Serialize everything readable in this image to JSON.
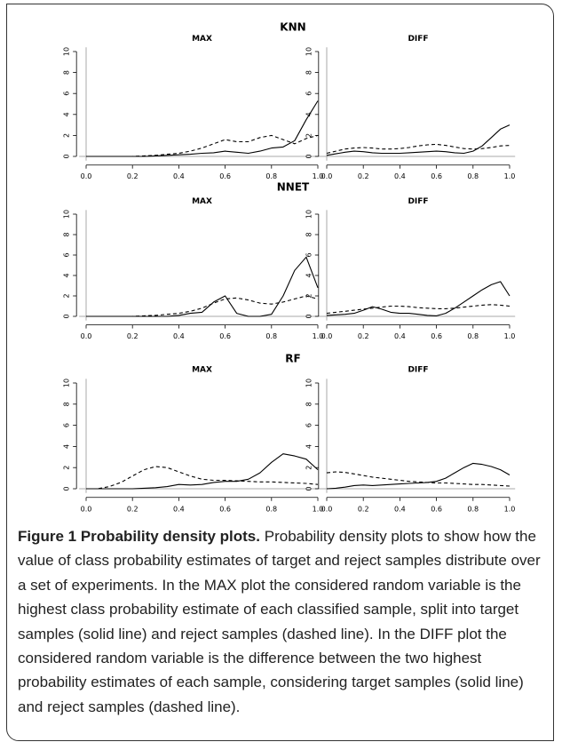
{
  "section_titles": [
    "KNN",
    "NNET",
    "RF"
  ],
  "caption": {
    "label": "Figure 1 Probability density plots.",
    "text": "Probability density plots to show how the value of class probability estimates of target and reject samples distribute over a set of experiments. In the MAX plot the considered random variable is the highest class probability estimate of each classified sample, split into target samples (solid line) and reject samples (dashed line). In the DIFF plot the considered random variable is the difference between the two highest probability estimates of each sample, considering target samples (solid line) and reject samples (dashed line)."
  },
  "chart_data": [
    {
      "type": "line",
      "title": "MAX",
      "x": [
        0,
        0.05,
        0.1,
        0.15,
        0.2,
        0.25,
        0.3,
        0.35,
        0.4,
        0.45,
        0.5,
        0.55,
        0.6,
        0.65,
        0.7,
        0.75,
        0.8,
        0.85,
        0.9,
        0.95,
        1
      ],
      "xlim": [
        -0.03,
        1.03
      ],
      "xticks": [
        {
          "value": 0,
          "label": "0.0"
        },
        {
          "value": 0.2,
          "label": "0.2"
        },
        {
          "value": 0.4,
          "label": "0.4"
        },
        {
          "value": 0.6,
          "label": "0.6"
        },
        {
          "value": 0.8,
          "label": "0.8"
        },
        {
          "value": 1,
          "label": "1.0"
        }
      ],
      "ylim": [
        -0.4,
        10.4
      ],
      "yticks": [
        0,
        2,
        4,
        6,
        8,
        10
      ],
      "series": [
        {
          "color": "#000000",
          "dash": false,
          "values": [
            0,
            0,
            0,
            0,
            0,
            0,
            0.05,
            0.1,
            0.15,
            0.2,
            0.3,
            0.35,
            0.5,
            0.4,
            0.3,
            0.5,
            0.8,
            0.9,
            1.5,
            3.5,
            5.3
          ]
        },
        {
          "color": "#000000",
          "dash": true,
          "values": [
            0,
            0,
            0,
            0,
            0,
            0.05,
            0.1,
            0.2,
            0.3,
            0.5,
            0.8,
            1.2,
            1.6,
            1.4,
            1.4,
            1.8,
            2.0,
            1.6,
            1.2,
            1.7,
            2.0
          ]
        }
      ]
    },
    {
      "type": "line",
      "title": "DIFF",
      "x": [
        0,
        0.05,
        0.1,
        0.15,
        0.2,
        0.25,
        0.3,
        0.35,
        0.4,
        0.45,
        0.5,
        0.55,
        0.6,
        0.65,
        0.7,
        0.75,
        0.8,
        0.85,
        0.9,
        0.95,
        1
      ],
      "xlim": [
        -0.03,
        1.03
      ],
      "xticks": [
        {
          "value": 0,
          "label": "0.0"
        },
        {
          "value": 0.2,
          "label": "0.2"
        },
        {
          "value": 0.4,
          "label": "0.4"
        },
        {
          "value": 0.6,
          "label": "0.6"
        },
        {
          "value": 0.8,
          "label": "0.8"
        },
        {
          "value": 1,
          "label": "1.0"
        }
      ],
      "ylim": [
        -0.4,
        10.4
      ],
      "yticks": [
        0,
        2,
        4,
        6,
        8,
        10
      ],
      "series": [
        {
          "color": "#000000",
          "dash": false,
          "values": [
            0.1,
            0.25,
            0.4,
            0.5,
            0.45,
            0.35,
            0.3,
            0.3,
            0.3,
            0.35,
            0.4,
            0.45,
            0.5,
            0.45,
            0.35,
            0.3,
            0.5,
            1.0,
            1.8,
            2.6,
            3.0
          ]
        },
        {
          "color": "#000000",
          "dash": true,
          "values": [
            0.3,
            0.5,
            0.7,
            0.8,
            0.85,
            0.8,
            0.7,
            0.7,
            0.75,
            0.85,
            1.0,
            1.1,
            1.15,
            1.05,
            0.9,
            0.75,
            0.7,
            0.75,
            0.85,
            1.0,
            1.05
          ]
        }
      ]
    },
    {
      "type": "line",
      "title": "MAX",
      "x": [
        0,
        0.05,
        0.1,
        0.15,
        0.2,
        0.25,
        0.3,
        0.35,
        0.4,
        0.45,
        0.5,
        0.55,
        0.6,
        0.65,
        0.7,
        0.75,
        0.8,
        0.85,
        0.9,
        0.95,
        1
      ],
      "xlim": [
        -0.03,
        1.03
      ],
      "xticks": [
        {
          "value": 0,
          "label": "0.0"
        },
        {
          "value": 0.2,
          "label": "0.2"
        },
        {
          "value": 0.4,
          "label": "0.4"
        },
        {
          "value": 0.6,
          "label": "0.6"
        },
        {
          "value": 0.8,
          "label": "0.8"
        },
        {
          "value": 1,
          "label": "1.0"
        }
      ],
      "ylim": [
        -0.4,
        10.4
      ],
      "yticks": [
        0,
        2,
        4,
        6,
        8,
        10
      ],
      "series": [
        {
          "color": "#000000",
          "dash": false,
          "values": [
            0,
            0,
            0,
            0,
            0,
            0,
            0,
            0,
            0.1,
            0.3,
            0.4,
            1.4,
            2.0,
            0.3,
            0,
            0,
            0.2,
            2.0,
            4.5,
            5.8,
            2.8
          ]
        },
        {
          "color": "#000000",
          "dash": true,
          "values": [
            0,
            0,
            0,
            0,
            0,
            0.05,
            0.1,
            0.2,
            0.3,
            0.5,
            0.8,
            1.3,
            1.7,
            1.8,
            1.6,
            1.3,
            1.2,
            1.4,
            1.7,
            2.0,
            1.7
          ]
        }
      ]
    },
    {
      "type": "line",
      "title": "DIFF",
      "x": [
        0,
        0.05,
        0.1,
        0.15,
        0.2,
        0.25,
        0.3,
        0.35,
        0.4,
        0.45,
        0.5,
        0.55,
        0.6,
        0.65,
        0.7,
        0.75,
        0.8,
        0.85,
        0.9,
        0.95,
        1
      ],
      "xlim": [
        -0.03,
        1.03
      ],
      "xticks": [
        {
          "value": 0,
          "label": "0.0"
        },
        {
          "value": 0.2,
          "label": "0.2"
        },
        {
          "value": 0.4,
          "label": "0.4"
        },
        {
          "value": 0.6,
          "label": "0.6"
        },
        {
          "value": 0.8,
          "label": "0.8"
        },
        {
          "value": 1,
          "label": "1.0"
        }
      ],
      "ylim": [
        -0.4,
        10.4
      ],
      "yticks": [
        0,
        2,
        4,
        6,
        8,
        10
      ],
      "series": [
        {
          "color": "#000000",
          "dash": false,
          "values": [
            0.1,
            0.15,
            0.2,
            0.3,
            0.6,
            0.95,
            0.7,
            0.4,
            0.3,
            0.3,
            0.2,
            0.1,
            0.05,
            0.3,
            0.8,
            1.4,
            2.0,
            2.6,
            3.1,
            3.4,
            2.0
          ]
        },
        {
          "color": "#000000",
          "dash": true,
          "values": [
            0.3,
            0.4,
            0.5,
            0.6,
            0.7,
            0.8,
            0.9,
            1.0,
            1.0,
            0.95,
            0.85,
            0.8,
            0.75,
            0.75,
            0.8,
            0.9,
            1.0,
            1.1,
            1.15,
            1.1,
            1.0
          ]
        }
      ]
    },
    {
      "type": "line",
      "title": "MAX",
      "x": [
        0,
        0.05,
        0.1,
        0.15,
        0.2,
        0.25,
        0.3,
        0.35,
        0.4,
        0.45,
        0.5,
        0.55,
        0.6,
        0.65,
        0.7,
        0.75,
        0.8,
        0.85,
        0.9,
        0.95,
        1
      ],
      "xlim": [
        -0.03,
        1.03
      ],
      "xticks": [
        {
          "value": 0,
          "label": "0.0"
        },
        {
          "value": 0.2,
          "label": "0.2"
        },
        {
          "value": 0.4,
          "label": "0.4"
        },
        {
          "value": 0.6,
          "label": "0.6"
        },
        {
          "value": 0.8,
          "label": "0.8"
        },
        {
          "value": 1,
          "label": "1.0"
        }
      ],
      "ylim": [
        -0.4,
        10.4
      ],
      "yticks": [
        0,
        2,
        4,
        6,
        8,
        10
      ],
      "series": [
        {
          "color": "#000000",
          "dash": false,
          "values": [
            0,
            0,
            0,
            0,
            0,
            0.05,
            0.1,
            0.2,
            0.4,
            0.35,
            0.4,
            0.6,
            0.7,
            0.7,
            0.9,
            1.5,
            2.5,
            3.3,
            3.1,
            2.8,
            1.8
          ]
        },
        {
          "color": "#000000",
          "dash": true,
          "values": [
            0,
            0,
            0.2,
            0.6,
            1.2,
            1.8,
            2.1,
            2.0,
            1.6,
            1.2,
            0.9,
            0.8,
            0.8,
            0.75,
            0.7,
            0.65,
            0.65,
            0.6,
            0.55,
            0.5,
            0.4
          ]
        }
      ]
    },
    {
      "type": "line",
      "title": "DIFF",
      "x": [
        0,
        0.05,
        0.1,
        0.15,
        0.2,
        0.25,
        0.3,
        0.35,
        0.4,
        0.45,
        0.5,
        0.55,
        0.6,
        0.65,
        0.7,
        0.75,
        0.8,
        0.85,
        0.9,
        0.95,
        1
      ],
      "xlim": [
        -0.03,
        1.03
      ],
      "xticks": [
        {
          "value": 0,
          "label": "0.0"
        },
        {
          "value": 0.2,
          "label": "0.2"
        },
        {
          "value": 0.4,
          "label": "0.4"
        },
        {
          "value": 0.6,
          "label": "0.6"
        },
        {
          "value": 0.8,
          "label": "0.8"
        },
        {
          "value": 1,
          "label": "1.0"
        }
      ],
      "ylim": [
        -0.4,
        10.4
      ],
      "yticks": [
        0,
        2,
        4,
        6,
        8,
        10
      ],
      "series": [
        {
          "color": "#000000",
          "dash": false,
          "values": [
            0,
            0.05,
            0.15,
            0.3,
            0.35,
            0.3,
            0.35,
            0.4,
            0.45,
            0.5,
            0.55,
            0.6,
            0.7,
            1.0,
            1.5,
            2.0,
            2.4,
            2.3,
            2.1,
            1.8,
            1.3
          ]
        },
        {
          "color": "#000000",
          "dash": true,
          "values": [
            1.5,
            1.6,
            1.55,
            1.4,
            1.25,
            1.1,
            1.0,
            0.9,
            0.8,
            0.7,
            0.65,
            0.6,
            0.55,
            0.55,
            0.5,
            0.45,
            0.4,
            0.4,
            0.35,
            0.3,
            0.25
          ]
        }
      ]
    }
  ]
}
